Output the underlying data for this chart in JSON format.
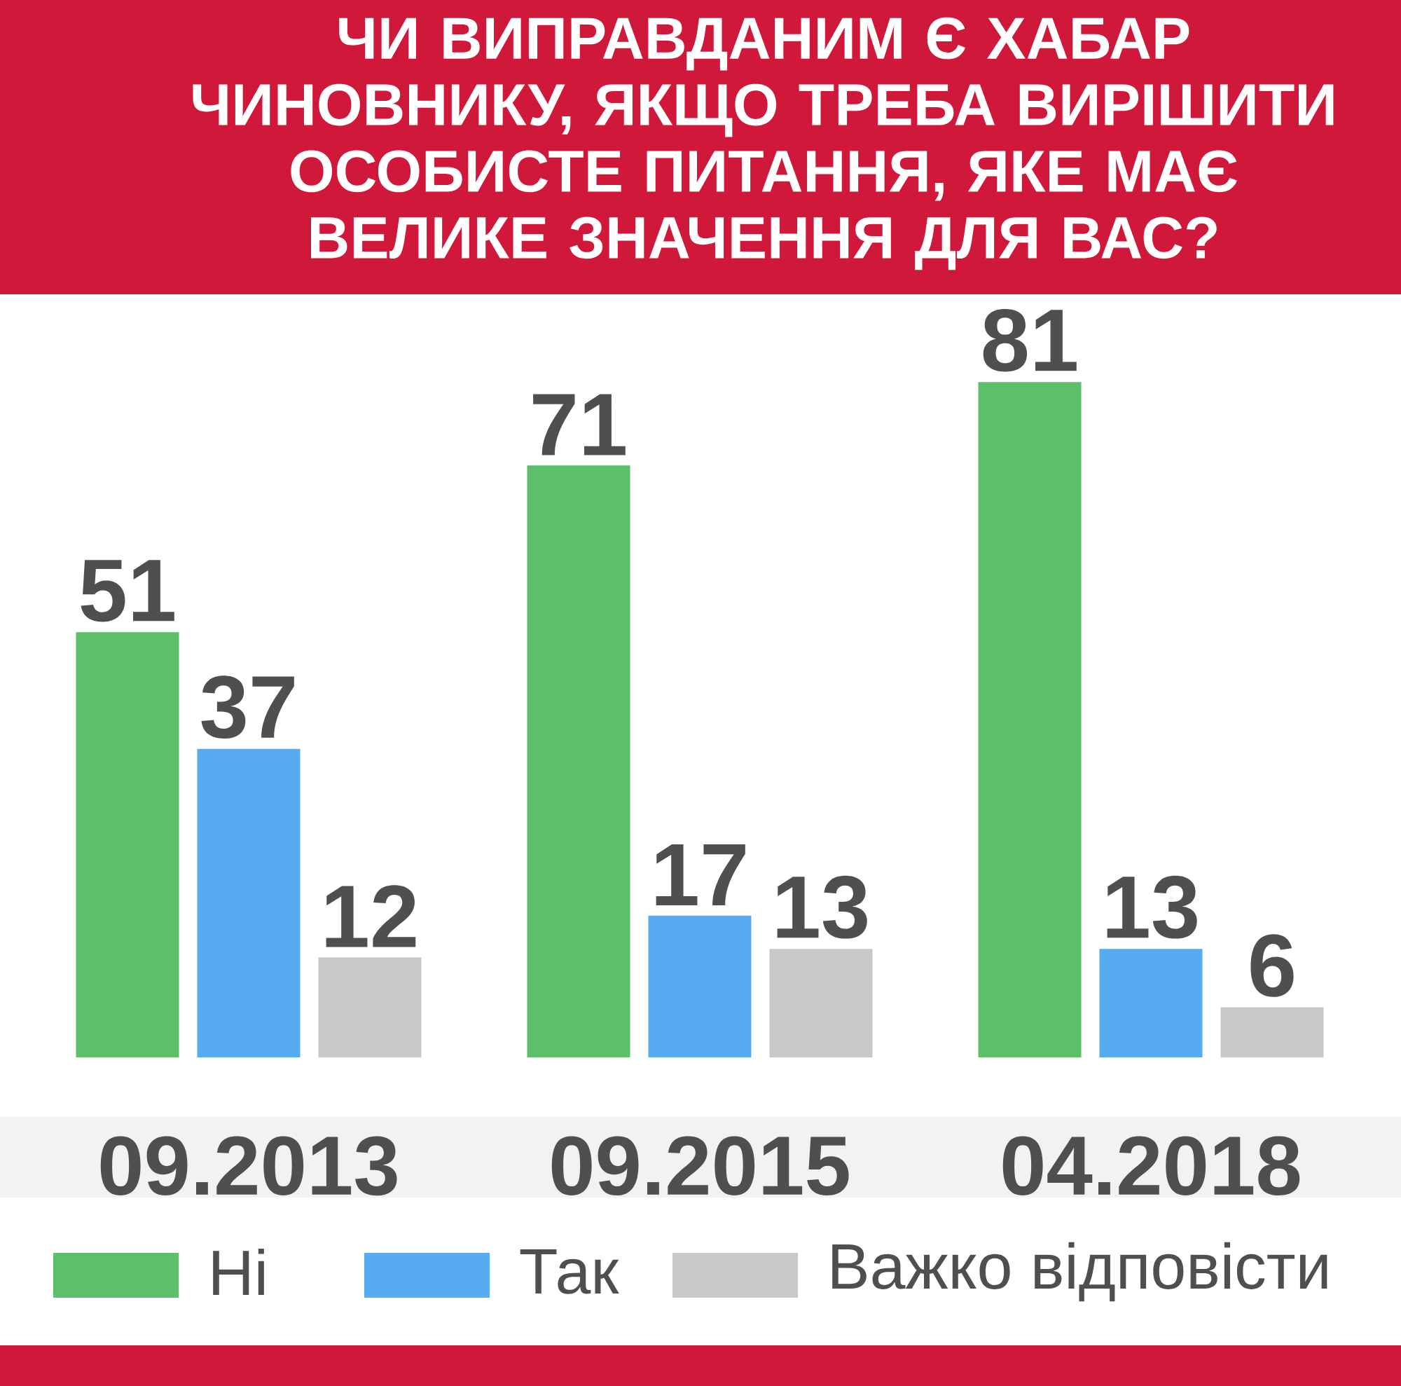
{
  "chart_data": {
    "type": "bar",
    "title": "ЧИ ВИПРАВДАНИМ Є ХАБАР ЧИНОВНИКУ, ЯКЩО ТРЕБА ВИРІШИТИ ОСОБИСТЕ ПИТАННЯ, ЯКЕ МАЄ ВЕЛИКЕ ЗНАЧЕННЯ ДЛЯ ВАС?",
    "categories": [
      "09.2013",
      "09.2015",
      "04.2018"
    ],
    "series": [
      {
        "name": "Ні",
        "color": "#5cbf6a",
        "values": [
          51,
          71,
          81
        ]
      },
      {
        "name": "Так",
        "color": "#57abf0",
        "values": [
          37,
          17,
          13
        ]
      },
      {
        "name": "Важко відповісти",
        "color": "#c8c8c8",
        "values": [
          12,
          13,
          6
        ]
      }
    ],
    "data_labels": true,
    "legend": "bottom"
  }
}
